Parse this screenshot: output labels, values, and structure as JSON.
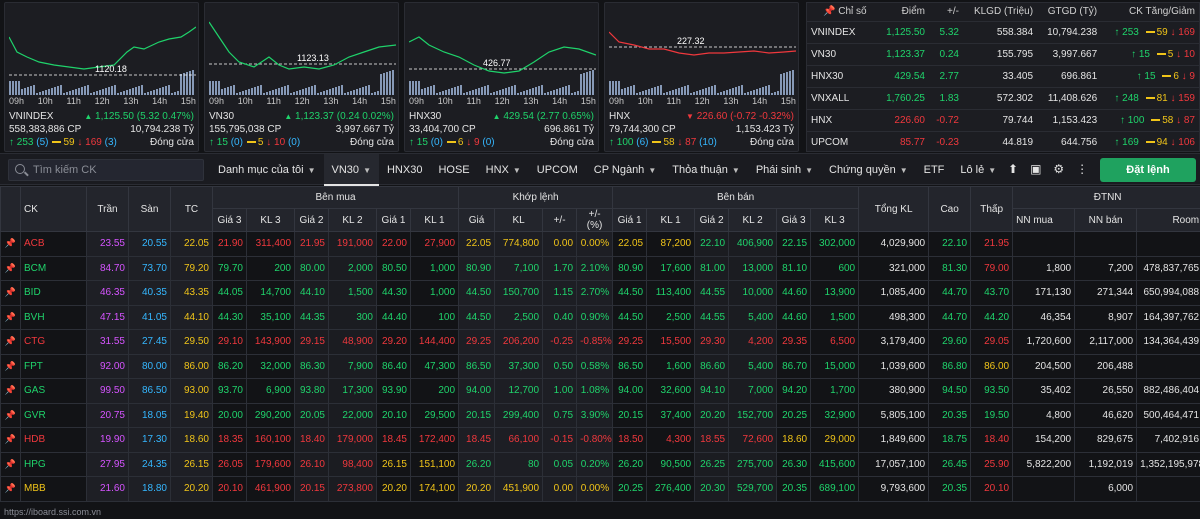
{
  "charts": [
    {
      "name": "VNINDEX",
      "ref_label": "1120.18",
      "volume": "558,383,886 CP",
      "value": "10,794.238 Tỷ",
      "change": "1,125.50 (5.32 0.47%)",
      "up": "253",
      "up_sub": "(5)",
      "ref_cnt": "59",
      "dn": "169",
      "dn_sub": "(3)",
      "status": "Đóng cửa",
      "color": "up"
    },
    {
      "name": "VN30",
      "ref_label": "1123.13",
      "volume": "155,795,038 CP",
      "value": "3,997.667 Tỷ",
      "change": "1,123.37 (0.24 0.02%)",
      "up": "15",
      "up_sub": "(0)",
      "ref_cnt": "5",
      "dn": "10",
      "dn_sub": "(0)",
      "status": "Đóng cửa",
      "color": "up"
    },
    {
      "name": "HNX30",
      "ref_label": "426.77",
      "volume": "33,404,700 CP",
      "value": "696.861 Tỷ",
      "change": "429.54 (2.77 0.65%)",
      "up": "15",
      "up_sub": "(0)",
      "ref_cnt": "6",
      "dn": "9",
      "dn_sub": "(0)",
      "status": "Đóng cửa",
      "color": "up"
    },
    {
      "name": "HNX",
      "ref_label": "227.32",
      "volume": "79,744,300 CP",
      "value": "1,153.423 Tỷ",
      "change": "226.60 (-0.72 -0.32%)",
      "up": "100",
      "up_sub": "(6)",
      "ref_cnt": "58",
      "dn": "87",
      "dn_sub": "(10)",
      "status": "Đóng cửa",
      "color": "dn"
    }
  ],
  "time_ticks": [
    "09h",
    "10h",
    "11h",
    "12h",
    "13h",
    "14h",
    "15h"
  ],
  "index_table": {
    "headers": [
      "Chỉ số",
      "Điểm",
      "+/-",
      "KLGD (Triệu)",
      "GTGD (Tỷ)",
      "CK Tăng/Giảm"
    ],
    "rows": [
      {
        "name": "VNINDEX",
        "point": "1,125.50",
        "chg": "5.32",
        "vol": "558.384",
        "val": "10,794.238",
        "up": "253",
        "ref": "59",
        "dn": "169",
        "c": "up"
      },
      {
        "name": "VN30",
        "point": "1,123.37",
        "chg": "0.24",
        "vol": "155.795",
        "val": "3,997.667",
        "up": "15",
        "ref": "5",
        "dn": "10",
        "c": "up"
      },
      {
        "name": "HNX30",
        "point": "429.54",
        "chg": "2.77",
        "vol": "33.405",
        "val": "696.861",
        "up": "15",
        "ref": "6",
        "dn": "9",
        "c": "up"
      },
      {
        "name": "VNXALL",
        "point": "1,760.25",
        "chg": "1.83",
        "vol": "572.302",
        "val": "11,408.626",
        "up": "248",
        "ref": "81",
        "dn": "159",
        "c": "up"
      },
      {
        "name": "HNX",
        "point": "226.60",
        "chg": "-0.72",
        "vol": "79.744",
        "val": "1,153.423",
        "up": "100",
        "ref": "58",
        "dn": "87",
        "c": "dn"
      },
      {
        "name": "UPCOM",
        "point": "85.77",
        "chg": "-0.23",
        "vol": "44.819",
        "val": "644.756",
        "up": "169",
        "ref": "94",
        "dn": "106",
        "c": "dn"
      }
    ]
  },
  "toolbar": {
    "search_placeholder": "Tìm kiếm CK",
    "tabs": [
      {
        "label": "Danh mục của tôi",
        "dd": true
      },
      {
        "label": "VN30",
        "dd": true,
        "active": true
      },
      {
        "label": "HNX30"
      },
      {
        "label": "HOSE"
      },
      {
        "label": "HNX",
        "dd": true
      },
      {
        "label": "UPCOM"
      },
      {
        "label": "CP Ngành",
        "dd": true
      },
      {
        "label": "Thỏa thuận",
        "dd": true
      },
      {
        "label": "Phái sinh",
        "dd": true
      },
      {
        "label": "Chứng quyền",
        "dd": true
      },
      {
        "label": "ETF"
      },
      {
        "label": "Lô lẻ",
        "dd": true
      }
    ],
    "order_label": "Đặt lệnh"
  },
  "board": {
    "groups": {
      "buy": "Bên mua",
      "match": "Khớp lệnh",
      "sell": "Bên bán",
      "foreign": "ĐTNN"
    },
    "h": {
      "ck": "CK",
      "tran": "Trần",
      "san": "Sàn",
      "tc": "TC",
      "g3": "Giá 3",
      "kl3": "KL 3",
      "g2": "Giá 2",
      "kl2": "KL 2",
      "g1": "Giá 1",
      "kl1": "KL 1",
      "mg": "Giá",
      "mkl": "KL",
      "pm": "+/-",
      "pct": "+/- (%)",
      "tkl": "Tổng KL",
      "cao": "Cao",
      "thap": "Thấp",
      "nnm": "NN mua",
      "nnb": "NN bán",
      "room": "Room"
    },
    "rows": [
      {
        "ck": "ACB",
        "c": "dn",
        "tran": "23.55",
        "san": "20.55",
        "tc": "22.05",
        "b3": [
          "21.90",
          "311,400",
          "dn"
        ],
        "b2": [
          "21.95",
          "191,000",
          "dn"
        ],
        "b1": [
          "22.00",
          "27,900",
          "dn"
        ],
        "m": [
          "22.05",
          "774,800",
          "0.00",
          "0.00%",
          "ref"
        ],
        "s1": [
          "22.05",
          "87,200",
          "ref"
        ],
        "s2": [
          "22.10",
          "406,900",
          "up"
        ],
        "s3": [
          "22.15",
          "302,000",
          "up"
        ],
        "tkl": "4,029,900",
        "cao": [
          "22.10",
          "up"
        ],
        "thap": [
          "21.95",
          "dn"
        ],
        "nnm": "",
        "nnb": "",
        "room": ""
      },
      {
        "ck": "BCM",
        "c": "up",
        "tran": "84.70",
        "san": "73.70",
        "tc": "79.20",
        "b3": [
          "79.70",
          "200",
          "up"
        ],
        "b2": [
          "80.00",
          "2,000",
          "up"
        ],
        "b1": [
          "80.50",
          "1,000",
          "up"
        ],
        "m": [
          "80.90",
          "7,100",
          "1.70",
          "2.10%",
          "up"
        ],
        "s1": [
          "80.90",
          "17,600",
          "up"
        ],
        "s2": [
          "81.00",
          "13,000",
          "up"
        ],
        "s3": [
          "81.10",
          "600",
          "up"
        ],
        "tkl": "321,000",
        "cao": [
          "81.30",
          "up"
        ],
        "thap": [
          "79.00",
          "dn"
        ],
        "nnm": "1,800",
        "nnb": "7,200",
        "room": "478,837,765"
      },
      {
        "ck": "BID",
        "c": "up",
        "tran": "46.35",
        "san": "40.35",
        "tc": "43.35",
        "b3": [
          "44.05",
          "14,700",
          "up"
        ],
        "b2": [
          "44.10",
          "1,500",
          "up"
        ],
        "b1": [
          "44.30",
          "1,000",
          "up"
        ],
        "m": [
          "44.50",
          "150,700",
          "1.15",
          "2.70%",
          "up"
        ],
        "s1": [
          "44.50",
          "113,400",
          "up"
        ],
        "s2": [
          "44.55",
          "10,000",
          "up"
        ],
        "s3": [
          "44.60",
          "13,900",
          "up"
        ],
        "tkl": "1,085,400",
        "cao": [
          "44.70",
          "up"
        ],
        "thap": [
          "43.70",
          "up"
        ],
        "nnm": "171,130",
        "nnb": "271,344",
        "room": "650,994,088"
      },
      {
        "ck": "BVH",
        "c": "up",
        "tran": "47.15",
        "san": "41.05",
        "tc": "44.10",
        "b3": [
          "44.30",
          "35,100",
          "up"
        ],
        "b2": [
          "44.35",
          "300",
          "up"
        ],
        "b1": [
          "44.40",
          "100",
          "up"
        ],
        "m": [
          "44.50",
          "2,500",
          "0.40",
          "0.90%",
          "up"
        ],
        "s1": [
          "44.50",
          "2,500",
          "up"
        ],
        "s2": [
          "44.55",
          "5,400",
          "up"
        ],
        "s3": [
          "44.60",
          "1,500",
          "up"
        ],
        "tkl": "498,300",
        "cao": [
          "44.70",
          "up"
        ],
        "thap": [
          "44.20",
          "up"
        ],
        "nnm": "46,354",
        "nnb": "8,907",
        "room": "164,397,762"
      },
      {
        "ck": "CTG",
        "c": "dn",
        "tran": "31.55",
        "san": "27.45",
        "tc": "29.50",
        "b3": [
          "29.10",
          "143,900",
          "dn"
        ],
        "b2": [
          "29.15",
          "48,900",
          "dn"
        ],
        "b1": [
          "29.20",
          "144,400",
          "dn"
        ],
        "m": [
          "29.25",
          "206,200",
          "-0.25",
          "-0.85%",
          "dn"
        ],
        "s1": [
          "29.25",
          "15,500",
          "dn"
        ],
        "s2": [
          "29.30",
          "4,200",
          "dn"
        ],
        "s3": [
          "29.35",
          "6,500",
          "dn"
        ],
        "tkl": "3,179,400",
        "cao": [
          "29.60",
          "up"
        ],
        "thap": [
          "29.05",
          "dn"
        ],
        "nnm": "1,720,600",
        "nnb": "2,117,000",
        "room": "134,364,439"
      },
      {
        "ck": "FPT",
        "c": "up",
        "tran": "92.00",
        "san": "80.00",
        "tc": "86.00",
        "b3": [
          "86.20",
          "32,000",
          "up"
        ],
        "b2": [
          "86.30",
          "7,900",
          "up"
        ],
        "b1": [
          "86.40",
          "47,300",
          "up"
        ],
        "m": [
          "86.50",
          "37,300",
          "0.50",
          "0.58%",
          "up"
        ],
        "s1": [
          "86.50",
          "1,600",
          "up"
        ],
        "s2": [
          "86.60",
          "5,400",
          "up"
        ],
        "s3": [
          "86.70",
          "15,000",
          "up"
        ],
        "tkl": "1,039,600",
        "cao": [
          "86.80",
          "up"
        ],
        "thap": [
          "86.00",
          "ref"
        ],
        "nnm": "204,500",
        "nnb": "206,488",
        "room": ""
      },
      {
        "ck": "GAS",
        "c": "up",
        "tran": "99.50",
        "san": "86.50",
        "tc": "93.00",
        "b3": [
          "93.70",
          "6,900",
          "up"
        ],
        "b2": [
          "93.80",
          "17,300",
          "up"
        ],
        "b1": [
          "93.90",
          "200",
          "up"
        ],
        "m": [
          "94.00",
          "12,700",
          "1.00",
          "1.08%",
          "up"
        ],
        "s1": [
          "94.00",
          "32,600",
          "up"
        ],
        "s2": [
          "94.10",
          "7,000",
          "up"
        ],
        "s3": [
          "94.20",
          "1,700",
          "up"
        ],
        "tkl": "380,900",
        "cao": [
          "94.50",
          "up"
        ],
        "thap": [
          "93.50",
          "up"
        ],
        "nnm": "35,402",
        "nnb": "26,550",
        "room": "882,486,404"
      },
      {
        "ck": "GVR",
        "c": "up",
        "tran": "20.75",
        "san": "18.05",
        "tc": "19.40",
        "b3": [
          "20.00",
          "290,200",
          "up"
        ],
        "b2": [
          "20.05",
          "22,000",
          "up"
        ],
        "b1": [
          "20.10",
          "29,500",
          "up"
        ],
        "m": [
          "20.15",
          "299,400",
          "0.75",
          "3.90%",
          "up"
        ],
        "s1": [
          "20.15",
          "37,400",
          "up"
        ],
        "s2": [
          "20.20",
          "152,700",
          "up"
        ],
        "s3": [
          "20.25",
          "32,900",
          "up"
        ],
        "tkl": "5,805,100",
        "cao": [
          "20.35",
          "up"
        ],
        "thap": [
          "19.50",
          "up"
        ],
        "nnm": "4,800",
        "nnb": "46,620",
        "room": "500,464,471"
      },
      {
        "ck": "HDB",
        "c": "dn",
        "tran": "19.90",
        "san": "17.30",
        "tc": "18.60",
        "b3": [
          "18.35",
          "160,100",
          "dn"
        ],
        "b2": [
          "18.40",
          "179,000",
          "dn"
        ],
        "b1": [
          "18.45",
          "172,400",
          "dn"
        ],
        "m": [
          "18.45",
          "66,100",
          "-0.15",
          "-0.80%",
          "dn"
        ],
        "s1": [
          "18.50",
          "4,300",
          "dn"
        ],
        "s2": [
          "18.55",
          "72,600",
          "dn"
        ],
        "s3": [
          "18.60",
          "29,000",
          "ref"
        ],
        "tkl": "1,849,600",
        "cao": [
          "18.75",
          "up"
        ],
        "thap": [
          "18.40",
          "dn"
        ],
        "nnm": "154,200",
        "nnb": "829,675",
        "room": "7,402,916"
      },
      {
        "ck": "HPG",
        "c": "up",
        "tran": "27.95",
        "san": "24.35",
        "tc": "26.15",
        "b3": [
          "26.05",
          "179,600",
          "dn"
        ],
        "b2": [
          "26.10",
          "98,400",
          "dn"
        ],
        "b1": [
          "26.15",
          "151,100",
          "ref"
        ],
        "m": [
          "26.20",
          "80",
          "0.05",
          "0.20%",
          "up"
        ],
        "s1": [
          "26.20",
          "90,500",
          "up"
        ],
        "s2": [
          "26.25",
          "275,700",
          "up"
        ],
        "s3": [
          "26.30",
          "415,600",
          "up"
        ],
        "tkl": "17,057,100",
        "cao": [
          "26.45",
          "up"
        ],
        "thap": [
          "25.90",
          "dn"
        ],
        "nnm": "5,822,200",
        "nnb": "1,192,019",
        "room": "1,352,195,978"
      },
      {
        "ck": "MBB",
        "c": "ref",
        "tran": "21.60",
        "san": "18.80",
        "tc": "20.20",
        "b3": [
          "20.10",
          "461,900",
          "dn"
        ],
        "b2": [
          "20.15",
          "273,800",
          "dn"
        ],
        "b1": [
          "20.20",
          "174,100",
          "ref"
        ],
        "m": [
          "20.20",
          "451,900",
          "0.00",
          "0.00%",
          "ref"
        ],
        "s1": [
          "20.25",
          "276,400",
          "up"
        ],
        "s2": [
          "20.30",
          "529,700",
          "up"
        ],
        "s3": [
          "20.35",
          "689,100",
          "up"
        ],
        "tkl": "9,793,600",
        "cao": [
          "20.35",
          "up"
        ],
        "thap": [
          "20.10",
          "dn"
        ],
        "nnm": "",
        "nnb": "6,000",
        "room": ""
      }
    ]
  },
  "footer": "https://iboard.ssi.com.vn",
  "colors": {
    "up": "#1fd36b",
    "down": "#f0383d",
    "ref": "#f0c419",
    "ceiling": "#d554ff",
    "floor": "#35b7ff",
    "action": "#1fa25f"
  }
}
